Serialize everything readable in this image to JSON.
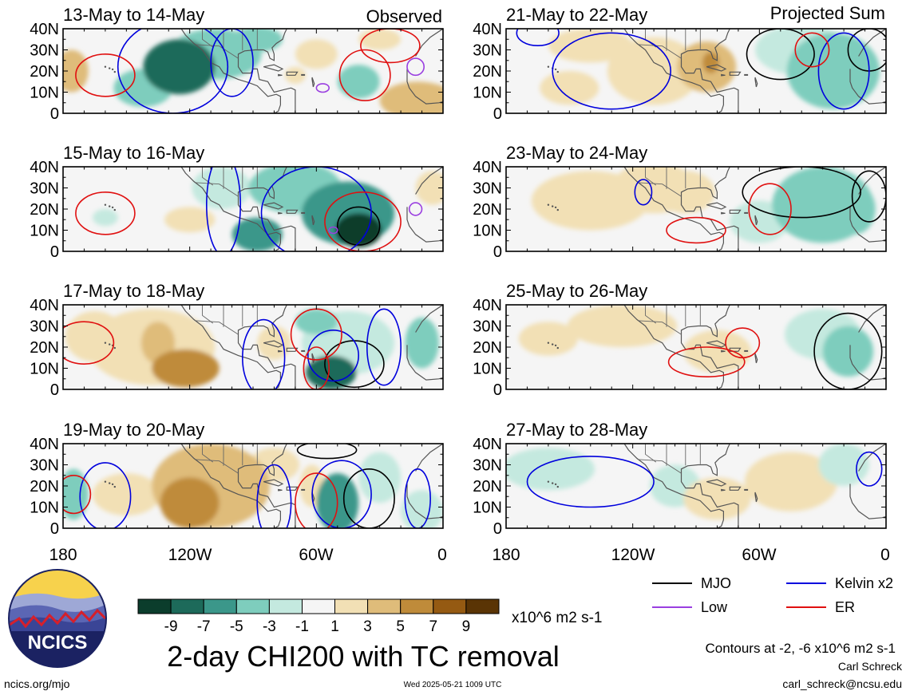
{
  "chart_data": {
    "type": "heatmap",
    "title": "2-day CHI200 with TC removal",
    "units": "x10^6 m2 s-1",
    "contour_note": "Contours at -2, -6 x10^6 m2 s-1",
    "column_labels": [
      "Observed",
      "Projected Sum"
    ],
    "y_ticks": [
      "40N",
      "30N",
      "20N",
      "10N",
      "0"
    ],
    "x_ticks": [
      "180",
      "120W",
      "60W",
      "0"
    ],
    "xlim": [
      -180,
      0
    ],
    "ylim": [
      0,
      40
    ],
    "colorbar": {
      "labels": [
        "-9",
        "-7",
        "-5",
        "-3",
        "-1",
        "1",
        "3",
        "5",
        "7",
        "9"
      ],
      "colors": [
        "#0b3d2c",
        "#1d6a5a",
        "#3b978a",
        "#7ecdbd",
        "#c4e9df",
        "#f5f5f5",
        "#f2e0b5",
        "#dfbc7a",
        "#bf8b3a",
        "#955a12",
        "#5a3405"
      ]
    },
    "legend": [
      {
        "label": "MJO",
        "color": "#000000"
      },
      {
        "label": "Kelvin x2",
        "color": "#0000dd"
      },
      {
        "label": "Low",
        "color": "#9a3fe0"
      },
      {
        "label": "ER",
        "color": "#e01010"
      }
    ],
    "panels": [
      {
        "column": "Observed",
        "period": "13-May to 14-May",
        "anomalies": [
          {
            "lon": -125,
            "lat": 22,
            "value": -8.5,
            "rx": 17,
            "ry": 13
          },
          {
            "lon": -108,
            "lat": 28,
            "value": -4,
            "rx": 22,
            "ry": 12
          },
          {
            "lon": -142,
            "lat": 12,
            "value": -3,
            "rx": 14,
            "ry": 9
          },
          {
            "lon": -88,
            "lat": 35,
            "value": -3,
            "rx": 12,
            "ry": 6
          },
          {
            "lon": -40,
            "lat": 15,
            "value": -4,
            "rx": 10,
            "ry": 8
          },
          {
            "lon": -176,
            "lat": 20,
            "value": 5,
            "rx": 8,
            "ry": 10
          },
          {
            "lon": -12,
            "lat": 6,
            "value": 5,
            "rx": 18,
            "ry": 9
          },
          {
            "lon": -60,
            "lat": 28,
            "value": 2,
            "rx": 10,
            "ry": 7
          },
          {
            "lon": -30,
            "lat": 35,
            "value": 2,
            "rx": 10,
            "ry": 5
          },
          {
            "lon": -70,
            "lat": 18,
            "value": 3,
            "rx": 5,
            "ry": 4
          }
        ],
        "contours": [
          {
            "type": "Kelvin x2",
            "lon": -128,
            "lat": 22,
            "rx": 26,
            "ry": 22
          },
          {
            "type": "Kelvin x2",
            "lon": -100,
            "lat": 24,
            "rx": 10,
            "ry": 16
          },
          {
            "type": "ER",
            "lon": -160,
            "lat": 18,
            "rx": 14,
            "ry": 10
          },
          {
            "type": "ER",
            "lon": -37,
            "lat": 18,
            "rx": 12,
            "ry": 12
          },
          {
            "type": "ER",
            "lon": -25,
            "lat": 32,
            "rx": 14,
            "ry": 8
          },
          {
            "type": "Low",
            "lon": -57,
            "lat": 12,
            "rx": 3,
            "ry": 2
          },
          {
            "type": "Low",
            "lon": -13,
            "lat": 22,
            "rx": 4,
            "ry": 4
          }
        ]
      },
      {
        "column": "Observed",
        "period": "15-May to 16-May",
        "anomalies": [
          {
            "lon": -40,
            "lat": 10,
            "value": -9,
            "rx": 11,
            "ry": 8
          },
          {
            "lon": -45,
            "lat": 18,
            "value": -5,
            "rx": 22,
            "ry": 15
          },
          {
            "lon": -88,
            "lat": 8,
            "value": -6,
            "rx": 12,
            "ry": 8
          },
          {
            "lon": -70,
            "lat": 30,
            "value": -3,
            "rx": 22,
            "ry": 12
          },
          {
            "lon": -105,
            "lat": 30,
            "value": -2,
            "rx": 14,
            "ry": 10
          },
          {
            "lon": -160,
            "lat": 16,
            "value": -2,
            "rx": 6,
            "ry": 4
          },
          {
            "lon": -120,
            "lat": 15,
            "value": 2,
            "rx": 12,
            "ry": 6
          },
          {
            "lon": -5,
            "lat": 30,
            "value": 2,
            "rx": 8,
            "ry": 8
          }
        ],
        "contours": [
          {
            "type": "MJO",
            "lon": -40,
            "lat": 12,
            "rx": 10,
            "ry": 9
          },
          {
            "type": "Kelvin x2",
            "lon": -60,
            "lat": 18,
            "rx": 26,
            "ry": 22
          },
          {
            "type": "Kelvin x2",
            "lon": -104,
            "lat": 22,
            "rx": 8,
            "ry": 24
          },
          {
            "type": "ER",
            "lon": -160,
            "lat": 18,
            "rx": 14,
            "ry": 10
          },
          {
            "type": "ER",
            "lon": -38,
            "lat": 14,
            "rx": 18,
            "ry": 14
          },
          {
            "type": "Low",
            "lon": -13,
            "lat": 20,
            "rx": 3,
            "ry": 3
          },
          {
            "type": "Low",
            "lon": -52,
            "lat": 10,
            "rx": 2,
            "ry": 1.5
          }
        ]
      },
      {
        "column": "Observed",
        "period": "17-May to 18-May",
        "anomalies": [
          {
            "lon": -122,
            "lat": 10,
            "value": 7,
            "rx": 16,
            "ry": 9
          },
          {
            "lon": -135,
            "lat": 22,
            "value": 5,
            "rx": 8,
            "ry": 10
          },
          {
            "lon": -138,
            "lat": 20,
            "value": 3,
            "rx": 30,
            "ry": 18
          },
          {
            "lon": -165,
            "lat": 25,
            "value": 3,
            "rx": 14,
            "ry": 12
          },
          {
            "lon": -80,
            "lat": 22,
            "value": 3,
            "rx": 8,
            "ry": 8
          },
          {
            "lon": -53,
            "lat": 8,
            "value": -7,
            "rx": 12,
            "ry": 8
          },
          {
            "lon": -45,
            "lat": 22,
            "value": -2,
            "rx": 22,
            "ry": 15
          },
          {
            "lon": -60,
            "lat": 32,
            "value": -3,
            "rx": 10,
            "ry": 6
          },
          {
            "lon": -10,
            "lat": 22,
            "value": -3,
            "rx": 8,
            "ry": 12
          },
          {
            "lon": -172,
            "lat": 22,
            "value": -2,
            "rx": 4,
            "ry": 4
          }
        ],
        "contours": [
          {
            "type": "MJO",
            "lon": -42,
            "lat": 12,
            "rx": 14,
            "ry": 11
          },
          {
            "type": "Kelvin x2",
            "lon": -85,
            "lat": 15,
            "rx": 10,
            "ry": 18
          },
          {
            "type": "Kelvin x2",
            "lon": -52,
            "lat": 16,
            "rx": 12,
            "ry": 12
          },
          {
            "type": "Kelvin x2",
            "lon": -28,
            "lat": 20,
            "rx": 8,
            "ry": 18
          },
          {
            "type": "ER",
            "lon": -170,
            "lat": 22,
            "rx": 14,
            "ry": 10
          },
          {
            "type": "ER",
            "lon": -60,
            "lat": 10,
            "rx": 6,
            "ry": 10
          },
          {
            "type": "ER",
            "lon": -60,
            "lat": 26,
            "rx": 12,
            "ry": 12
          }
        ]
      },
      {
        "column": "Observed",
        "period": "19-May to 20-May",
        "anomalies": [
          {
            "lon": -120,
            "lat": 12,
            "value": 7,
            "rx": 14,
            "ry": 12
          },
          {
            "lon": -110,
            "lat": 20,
            "value": 5,
            "rx": 28,
            "ry": 20
          },
          {
            "lon": -150,
            "lat": 16,
            "value": 3,
            "rx": 16,
            "ry": 10
          },
          {
            "lon": -175,
            "lat": 16,
            "value": -4,
            "rx": 7,
            "ry": 12
          },
          {
            "lon": -50,
            "lat": 12,
            "value": -5,
            "rx": 10,
            "ry": 14
          },
          {
            "lon": -30,
            "lat": 24,
            "value": -2,
            "rx": 10,
            "ry": 12
          },
          {
            "lon": -10,
            "lat": 8,
            "value": -2,
            "rx": 10,
            "ry": 10
          },
          {
            "lon": -80,
            "lat": 30,
            "value": 2,
            "rx": 12,
            "ry": 8
          },
          {
            "lon": -62,
            "lat": 20,
            "value": 2,
            "rx": 6,
            "ry": 10
          }
        ],
        "contours": [
          {
            "type": "MJO",
            "lon": -35,
            "lat": 14,
            "rx": 12,
            "ry": 14
          },
          {
            "type": "MJO",
            "lon": -55,
            "lat": 37,
            "rx": 14,
            "ry": 4
          },
          {
            "type": "Kelvin x2",
            "lon": -160,
            "lat": 15,
            "rx": 12,
            "ry": 16
          },
          {
            "type": "Kelvin x2",
            "lon": -48,
            "lat": 16,
            "rx": 14,
            "ry": 16
          },
          {
            "type": "Kelvin x2",
            "lon": -80,
            "lat": 12,
            "rx": 8,
            "ry": 18
          },
          {
            "type": "Kelvin x2",
            "lon": -12,
            "lat": 14,
            "rx": 6,
            "ry": 14
          },
          {
            "type": "ER",
            "lon": -175,
            "lat": 16,
            "rx": 8,
            "ry": 9
          },
          {
            "type": "ER",
            "lon": -60,
            "lat": 12,
            "rx": 10,
            "ry": 14
          }
        ]
      },
      {
        "column": "Projected Sum",
        "period": "21-May to 22-May",
        "anomalies": [
          {
            "lon": -110,
            "lat": 20,
            "value": 3,
            "rx": 22,
            "ry": 16
          },
          {
            "lon": -85,
            "lat": 22,
            "value": 4,
            "rx": 14,
            "ry": 12
          },
          {
            "lon": -83,
            "lat": 24,
            "value": 6,
            "rx": 4,
            "ry": 5
          },
          {
            "lon": -140,
            "lat": 32,
            "value": 2,
            "rx": 20,
            "ry": 8
          },
          {
            "lon": -25,
            "lat": 20,
            "value": -4,
            "rx": 22,
            "ry": 18
          },
          {
            "lon": -40,
            "lat": 30,
            "value": -2,
            "rx": 22,
            "ry": 12
          },
          {
            "lon": -150,
            "lat": 12,
            "value": 2,
            "rx": 14,
            "ry": 8
          }
        ],
        "contours": [
          {
            "type": "MJO",
            "lon": -50,
            "lat": 28,
            "rx": 16,
            "ry": 12
          },
          {
            "type": "MJO",
            "lon": -8,
            "lat": 30,
            "rx": 10,
            "ry": 10
          },
          {
            "type": "Kelvin x2",
            "lon": -130,
            "lat": 20,
            "rx": 28,
            "ry": 18
          },
          {
            "type": "Kelvin x2",
            "lon": -20,
            "lat": 20,
            "rx": 12,
            "ry": 18
          },
          {
            "type": "Kelvin x2",
            "lon": -165,
            "lat": 38,
            "rx": 10,
            "ry": 6
          },
          {
            "type": "ER",
            "lon": -35,
            "lat": 30,
            "rx": 8,
            "ry": 8
          }
        ]
      },
      {
        "column": "Projected Sum",
        "period": "23-May to 24-May",
        "anomalies": [
          {
            "lon": -140,
            "lat": 24,
            "value": 3,
            "rx": 28,
            "ry": 14
          },
          {
            "lon": -95,
            "lat": 28,
            "value": 3,
            "rx": 14,
            "ry": 10
          },
          {
            "lon": -110,
            "lat": 30,
            "value": 2,
            "rx": 20,
            "ry": 12
          },
          {
            "lon": -30,
            "lat": 22,
            "value": -3,
            "rx": 24,
            "ry": 18
          },
          {
            "lon": -15,
            "lat": 20,
            "value": -4,
            "rx": 10,
            "ry": 12
          },
          {
            "lon": -60,
            "lat": 14,
            "value": -2,
            "rx": 14,
            "ry": 10
          }
        ],
        "contours": [
          {
            "type": "MJO",
            "lon": -40,
            "lat": 28,
            "rx": 28,
            "ry": 12
          },
          {
            "type": "MJO",
            "lon": -8,
            "lat": 26,
            "rx": 8,
            "ry": 12
          },
          {
            "type": "Kelvin x2",
            "lon": -115,
            "lat": 28,
            "rx": 4,
            "ry": 6
          },
          {
            "type": "ER",
            "lon": -90,
            "lat": 10,
            "rx": 14,
            "ry": 6
          },
          {
            "type": "ER",
            "lon": -55,
            "lat": 20,
            "rx": 10,
            "ry": 12
          }
        ]
      },
      {
        "column": "Projected Sum",
        "period": "25-May to 26-May",
        "anomalies": [
          {
            "lon": -125,
            "lat": 30,
            "value": 2,
            "rx": 26,
            "ry": 10
          },
          {
            "lon": -80,
            "lat": 18,
            "value": 2,
            "rx": 16,
            "ry": 10
          },
          {
            "lon": -160,
            "lat": 24,
            "value": 1.5,
            "rx": 14,
            "ry": 8
          },
          {
            "lon": -18,
            "lat": 18,
            "value": -3,
            "rx": 12,
            "ry": 12
          },
          {
            "lon": -30,
            "lat": 26,
            "value": -2,
            "rx": 18,
            "ry": 12
          }
        ],
        "contours": [
          {
            "type": "MJO",
            "lon": -18,
            "lat": 18,
            "rx": 16,
            "ry": 18
          },
          {
            "type": "ER",
            "lon": -85,
            "lat": 13,
            "rx": 18,
            "ry": 7
          },
          {
            "type": "ER",
            "lon": -68,
            "lat": 22,
            "rx": 8,
            "ry": 7
          }
        ]
      },
      {
        "column": "Projected Sum",
        "period": "27-May to 28-May",
        "anomalies": [
          {
            "lon": -80,
            "lat": 14,
            "value": 3,
            "rx": 16,
            "ry": 10
          },
          {
            "lon": -45,
            "lat": 22,
            "value": 1.5,
            "rx": 22,
            "ry": 14
          },
          {
            "lon": -160,
            "lat": 28,
            "value": -2,
            "rx": 22,
            "ry": 10
          },
          {
            "lon": -100,
            "lat": 20,
            "value": -1.5,
            "rx": 12,
            "ry": 10
          },
          {
            "lon": -20,
            "lat": 30,
            "value": -2,
            "rx": 12,
            "ry": 10
          }
        ],
        "contours": [
          {
            "type": "Kelvin x2",
            "lon": -140,
            "lat": 22,
            "rx": 30,
            "ry": 12
          },
          {
            "type": "Kelvin x2",
            "lon": -8,
            "lat": 28,
            "rx": 6,
            "ry": 8
          }
        ]
      }
    ]
  },
  "footer": {
    "logo_text": "NCICS",
    "site": "ncics.org/mjo",
    "timestamp": "Wed 2025-05-21 1009 UTC",
    "author": "Carl Schreck",
    "email": "carl_schreck@ncsu.edu"
  }
}
